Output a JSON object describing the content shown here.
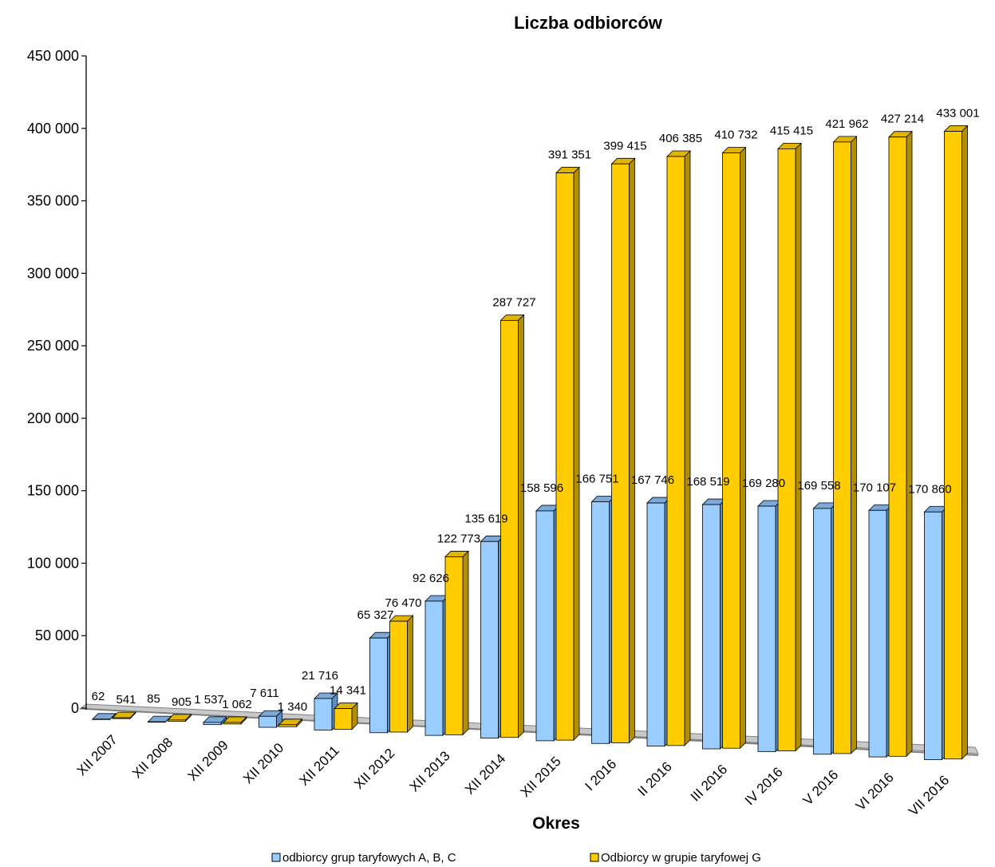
{
  "chart_data": {
    "type": "bar",
    "title": "Liczba odbiorców",
    "xlabel": "Okres",
    "ylabel": "",
    "ylim": [
      0,
      450000
    ],
    "yticks": [
      0,
      50000,
      100000,
      150000,
      200000,
      250000,
      300000,
      350000,
      400000,
      450000
    ],
    "ytick_labels": [
      "0",
      "50 000",
      "100 000",
      "150 000",
      "200 000",
      "250 000",
      "300 000",
      "350 000",
      "400 000",
      "450 000"
    ],
    "categories": [
      "XII 2007",
      "XII 2008",
      "XII 2009",
      "XII 2010",
      "XII 2011",
      "XII 2012",
      "XII 2013",
      "XII 2014",
      "XII 2015",
      "I 2016",
      "II 2016",
      "III 2016",
      "IV 2016",
      "V 2016",
      "VI 2016",
      "VII 2016"
    ],
    "series": [
      {
        "name": "odbiorcy grup taryfowych A, B, C",
        "color": "#99CCFF",
        "values": [
          62,
          85,
          1537,
          7611,
          21716,
          65327,
          92626,
          135619,
          158596,
          166751,
          167746,
          168519,
          169280,
          169558,
          170107,
          170860
        ],
        "labels": [
          "62",
          "85",
          "1 537",
          "7 611",
          "21 716",
          "65 327",
          "92 626",
          "135 619",
          "158 596",
          "166 751",
          "167 746",
          "168 519",
          "169 280",
          "169 558",
          "170 107",
          "170 860"
        ]
      },
      {
        "name": "Odbiorcy w grupie taryfowej G",
        "color": "#FFCC00",
        "values": [
          541,
          905,
          1062,
          1340,
          14341,
          76470,
          122773,
          287727,
          391351,
          399415,
          406385,
          410732,
          415415,
          421962,
          427214,
          433001
        ],
        "labels": [
          "541",
          "905",
          "1 062",
          "1 340",
          "14 341",
          "76 470",
          "122 773",
          "287 727",
          "391 351",
          "399 415",
          "406 385",
          "410 732",
          "415 415",
          "421 962",
          "427 214",
          "433 001"
        ]
      }
    ],
    "grid": false,
    "legend_position": "bottom",
    "style": "3d-column"
  }
}
